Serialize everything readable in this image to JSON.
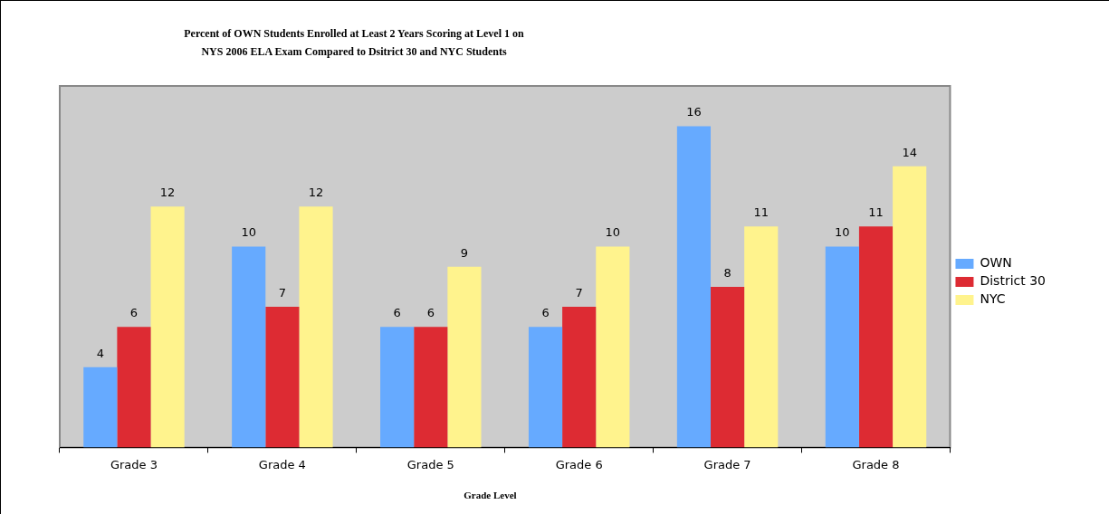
{
  "chart_data": {
    "type": "bar",
    "title": "Percent of OWN Students Enrolled at Least 2 Years Scoring at Level 1 on\nNYS  2006 ELA Exam Compared to Dsitrict 30 and NYC Students",
    "xlabel": "Grade Level",
    "categories": [
      "Grade 3",
      "Grade 4",
      "Grade 5",
      "Grade 6",
      "Grade 7",
      "Grade 8"
    ],
    "series": [
      {
        "name": "OWN",
        "color": "#66aaff",
        "values": [
          4,
          10,
          6,
          6,
          16,
          10
        ]
      },
      {
        "name": "District 30",
        "color": "#dd2b33",
        "values": [
          6,
          7,
          6,
          7,
          8,
          11
        ]
      },
      {
        "name": "NYC",
        "color": "#fff38d",
        "values": [
          12,
          12,
          9,
          10,
          11,
          14
        ]
      }
    ],
    "ylim": [
      0,
      18
    ],
    "tick_labels": "x",
    "grid": false,
    "legend": "right",
    "data_labels": true
  }
}
